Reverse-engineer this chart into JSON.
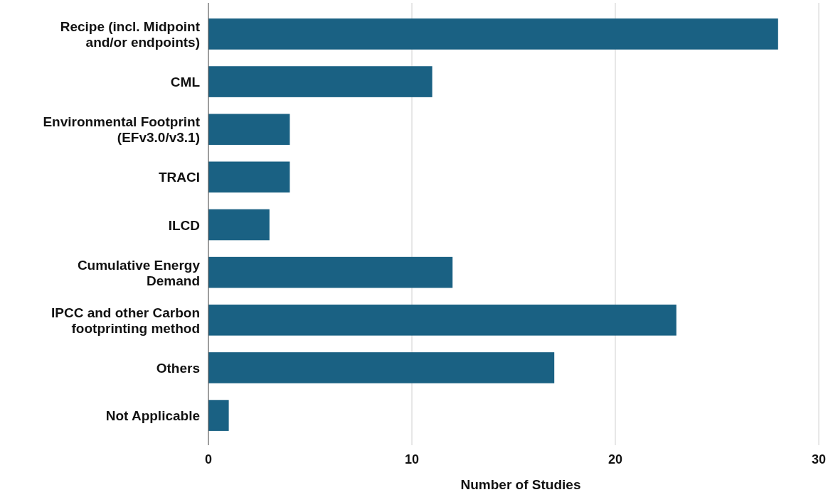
{
  "chart_data": {
    "type": "bar",
    "orientation": "horizontal",
    "xlabel": "Number of Studies",
    "categories": [
      "Recipe (incl. Midpoint and/or endpoints)",
      "CML",
      "Environmental Footprint (EFv3.0/v3.1)",
      "TRACI",
      "ILCD",
      "Cumulative Energy Demand",
      "IPCC and other Carbon footprinting method",
      "Others",
      "Not Applicable"
    ],
    "values": [
      28,
      11,
      4,
      4,
      3,
      12,
      23,
      17,
      1
    ],
    "color": "#1a6183",
    "xlim": [
      0,
      30
    ],
    "xticks": [
      0,
      10,
      20,
      30
    ],
    "grid": "x"
  }
}
